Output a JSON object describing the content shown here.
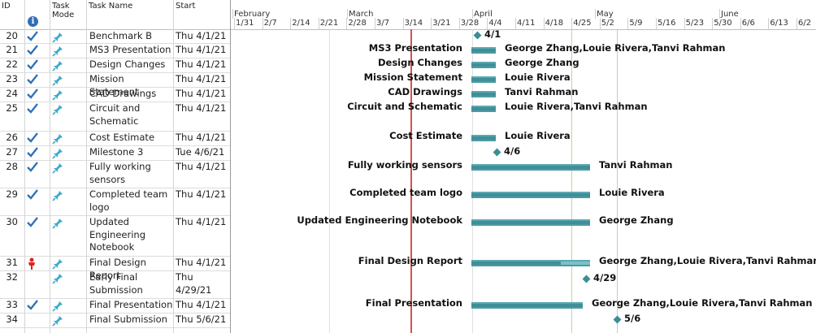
{
  "columns": {
    "id": "ID",
    "task_mode": "Task\nMode",
    "task_name": "Task Name",
    "start": "Start",
    "indicators_icon": "info-icon"
  },
  "timescale": {
    "months": [
      "February",
      "March",
      "April",
      "May",
      "June"
    ],
    "weeks": [
      "1/31",
      "2/7",
      "2/14",
      "2/21",
      "2/28",
      "3/7",
      "3/14",
      "3/21",
      "3/28",
      "4/4",
      "4/11",
      "4/18",
      "4/25",
      "5/2",
      "5/9",
      "5/16",
      "5/23",
      "5/30",
      "6/6",
      "6/13",
      "6/2"
    ]
  },
  "tasks": [
    {
      "id": "20",
      "indicator": "check",
      "name": "Benchmark B",
      "start": "Thu 4/1/21",
      "kind": "milestone",
      "chart_label": "4/1",
      "resources": ""
    },
    {
      "id": "21",
      "indicator": "check",
      "name": "MS3 Presentation",
      "start": "Thu 4/1/21",
      "kind": "bar",
      "chart_label": "MS3 Presentation",
      "resources": "George Zhang,Louie Rivera,Tanvi Rahman"
    },
    {
      "id": "22",
      "indicator": "check",
      "name": "Design Changes",
      "start": "Thu 4/1/21",
      "kind": "bar",
      "chart_label": "Design Changes",
      "resources": "George Zhang"
    },
    {
      "id": "23",
      "indicator": "check",
      "name": "Mission Statement",
      "start": "Thu 4/1/21",
      "kind": "bar",
      "chart_label": "Mission Statement",
      "resources": "Louie Rivera"
    },
    {
      "id": "24",
      "indicator": "check",
      "name": "CAD Drawings",
      "start": "Thu 4/1/21",
      "kind": "bar",
      "chart_label": "CAD Drawings",
      "resources": "Tanvi Rahman"
    },
    {
      "id": "25",
      "indicator": "check",
      "name": "Circuit and\nSchematic",
      "start": "Thu 4/1/21",
      "kind": "bar",
      "chart_label": "Circuit and Schematic",
      "resources": "Louie Rivera,Tanvi Rahman"
    },
    {
      "id": "26",
      "indicator": "check",
      "name": "Cost Estimate",
      "start": "Thu 4/1/21",
      "kind": "bar",
      "chart_label": "Cost Estimate",
      "resources": "Louie Rivera"
    },
    {
      "id": "27",
      "indicator": "check",
      "name": "Milestone 3",
      "start": "Tue 4/6/21",
      "kind": "milestone",
      "chart_label": "4/6",
      "resources": ""
    },
    {
      "id": "28",
      "indicator": "check",
      "name": "Fully working\nsensors",
      "start": "Thu 4/1/21",
      "kind": "bar",
      "chart_label": "Fully working sensors",
      "resources": "Tanvi Rahman"
    },
    {
      "id": "29",
      "indicator": "check",
      "name": "Completed team\nlogo",
      "start": "Thu 4/1/21",
      "kind": "bar",
      "chart_label": "Completed team logo",
      "resources": "Louie Rivera"
    },
    {
      "id": "30",
      "indicator": "check",
      "name": "Updated\nEngineering\nNotebook",
      "start": "Thu 4/1/21",
      "kind": "bar",
      "chart_label": "Updated Engineering Notebook",
      "resources": "George Zhang"
    },
    {
      "id": "31",
      "indicator": "person",
      "name": "Final Design Report",
      "start": "Thu 4/1/21",
      "kind": "bar",
      "progress": 0.75,
      "chart_label": "Final Design Report",
      "resources": "George Zhang,Louie Rivera,Tanvi Rahman"
    },
    {
      "id": "32",
      "indicator": "",
      "name": "Early Final\nSubmission",
      "start": "Thu\n4/29/21",
      "kind": "milestone",
      "chart_label": "4/29",
      "resources": ""
    },
    {
      "id": "33",
      "indicator": "check",
      "name": "Final Presentation",
      "start": "Thu 4/1/21",
      "kind": "bar",
      "chart_label": "Final Presentation",
      "resources": "George Zhang,Louie Rivera,Tanvi Rahman"
    },
    {
      "id": "34",
      "indicator": "",
      "name": "Final Submission",
      "start": "Thu 5/6/21",
      "kind": "milestone",
      "chart_label": "5/6",
      "resources": ""
    }
  ],
  "colors": {
    "bar": "#7cc0c8",
    "bar_progress": "#3f8f98",
    "milestone": "#3b8d96",
    "status_date_line": "#d94f4f",
    "check": "#2f6fb6",
    "task_mode_icon": "#3fa9c9"
  }
}
